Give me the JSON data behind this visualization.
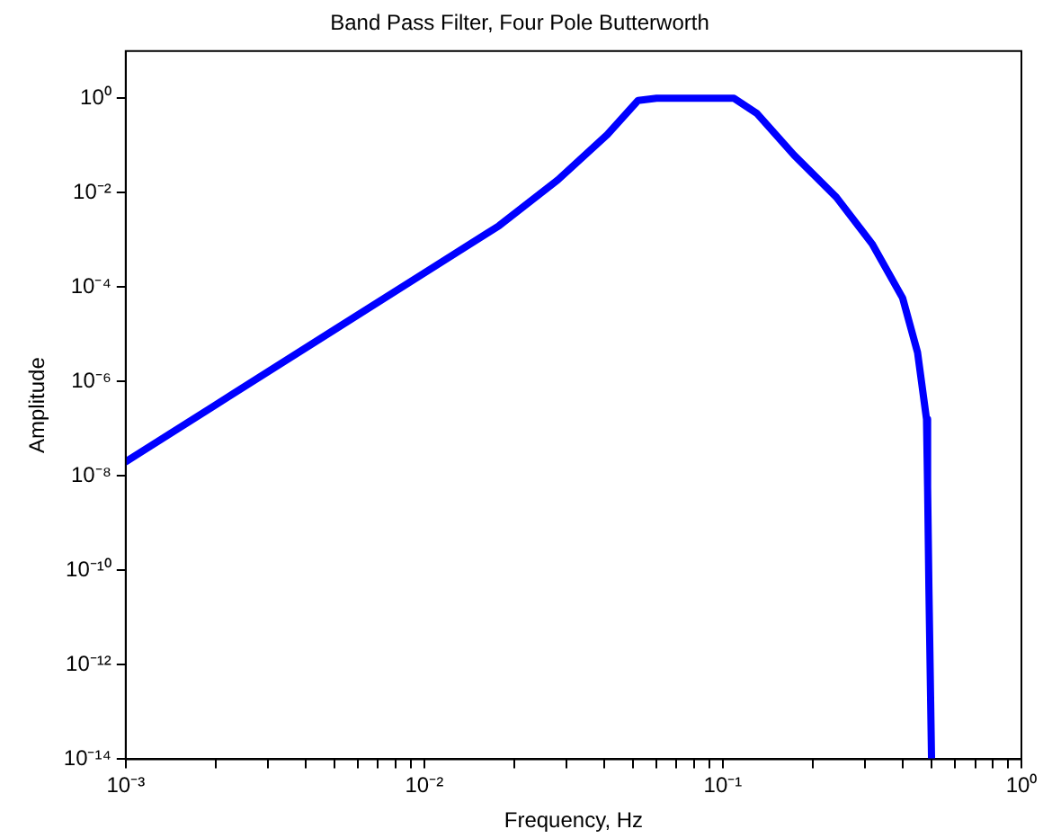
{
  "chart_data": {
    "type": "line",
    "title": "Band Pass Filter, Four Pole Butterworth",
    "xlabel": "Frequency, Hz",
    "ylabel": "Amplitude",
    "log": "xy",
    "grid": false,
    "legend": false,
    "marker": "none",
    "line_style": "solid",
    "xlim": [
      0.001,
      1
    ],
    "ylim": [
      1e-14,
      10
    ],
    "xticks": [
      {
        "value": 0.001,
        "label": "10⁻³"
      },
      {
        "value": 0.002,
        "label": null
      },
      {
        "value": 0.003,
        "label": null
      },
      {
        "value": 0.004,
        "label": null
      },
      {
        "value": 0.005,
        "label": null
      },
      {
        "value": 0.006,
        "label": null
      },
      {
        "value": 0.007,
        "label": null
      },
      {
        "value": 0.008,
        "label": null
      },
      {
        "value": 0.009,
        "label": null
      },
      {
        "value": 0.01,
        "label": "10⁻²"
      },
      {
        "value": 0.02,
        "label": null
      },
      {
        "value": 0.03,
        "label": null
      },
      {
        "value": 0.04,
        "label": null
      },
      {
        "value": 0.05,
        "label": null
      },
      {
        "value": 0.06,
        "label": null
      },
      {
        "value": 0.07,
        "label": null
      },
      {
        "value": 0.08,
        "label": null
      },
      {
        "value": 0.09,
        "label": null
      },
      {
        "value": 0.1,
        "label": "10⁻¹"
      },
      {
        "value": 0.2,
        "label": null
      },
      {
        "value": 0.3,
        "label": null
      },
      {
        "value": 0.4,
        "label": null
      },
      {
        "value": 0.5,
        "label": null
      },
      {
        "value": 0.6,
        "label": null
      },
      {
        "value": 0.7,
        "label": null
      },
      {
        "value": 0.8,
        "label": null
      },
      {
        "value": 0.9,
        "label": null
      },
      {
        "value": 1,
        "label": "10⁰"
      }
    ],
    "yticks": [
      {
        "value": 1e-14,
        "label": "10⁻¹⁴"
      },
      {
        "value": 1e-12,
        "label": "10⁻¹²"
      },
      {
        "value": 1e-10,
        "label": "10⁻¹⁰"
      },
      {
        "value": 1e-08,
        "label": "10⁻⁸"
      },
      {
        "value": 1e-06,
        "label": "10⁻⁶"
      },
      {
        "value": 0.0001,
        "label": "10⁻⁴"
      },
      {
        "value": 0.01,
        "label": "10⁻²"
      },
      {
        "value": 1,
        "label": "10⁰"
      }
    ],
    "series": [
      {
        "color": "#0000ff",
        "x": [
          0.001,
          0.002,
          0.005,
          0.01,
          0.0178,
          0.028,
          0.041,
          0.052,
          0.06,
          0.1,
          0.109,
          0.13,
          0.173,
          0.24,
          0.316,
          0.4,
          0.449,
          0.481,
          0.485,
          0.49,
          0.5
        ],
        "values": [
          2e-08,
          3.2e-07,
          1.25e-05,
          0.0002,
          0.002,
          0.0186,
          0.17,
          0.9,
          1,
          1,
          1,
          0.48,
          0.063,
          0.008,
          0.00083,
          5.9e-05,
          4.1e-06,
          1.6e-07,
          6e-09,
          4e-11,
          1e-14
        ]
      }
    ]
  }
}
